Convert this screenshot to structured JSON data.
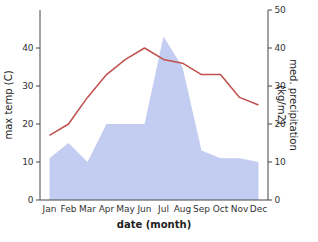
{
  "chart_data": {
    "type": "line",
    "categories": [
      "Jan",
      "Feb",
      "Mar",
      "Apr",
      "May",
      "Jun",
      "Jul",
      "Aug",
      "Sep",
      "Oct",
      "Nov",
      "Dec"
    ],
    "x_label": "date (month)",
    "y_label": "max temp (C)",
    "y2_label": "med. precipitation\n(kg/m2)",
    "ylim": [
      0,
      50
    ],
    "yticks": [
      0,
      10,
      20,
      30,
      40
    ],
    "y2lim": [
      0,
      50
    ],
    "y2ticks": [
      0,
      10,
      20,
      30,
      40,
      50
    ],
    "grid": false,
    "series": [
      {
        "type": "line",
        "axis": "y",
        "color": "#c0504d",
        "values": [
          17,
          20,
          27,
          33,
          37,
          40,
          37,
          36,
          33,
          33,
          27,
          25
        ]
      },
      {
        "type": "area",
        "axis": "y2",
        "color": "#b8c4f0",
        "values": [
          11,
          15,
          10,
          20,
          20,
          20,
          43,
          35,
          13,
          11,
          11,
          10
        ]
      }
    ]
  }
}
